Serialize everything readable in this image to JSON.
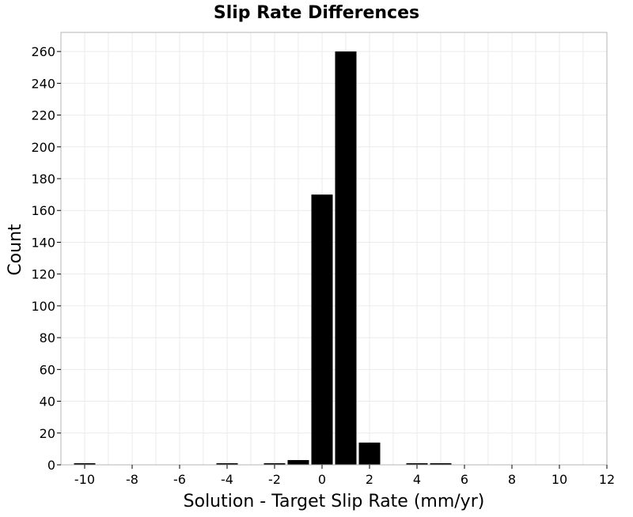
{
  "chart_data": {
    "type": "bar",
    "title": "Slip Rate Differences",
    "xlabel": "Solution - Target Slip Rate (mm/yr)",
    "ylabel": "Count",
    "xlim": [
      -11,
      12
    ],
    "ylim": [
      0,
      272
    ],
    "bin_width": 1,
    "x": [
      -10,
      -9,
      -8,
      -7,
      -6,
      -5,
      -4,
      -3,
      -2,
      -1,
      0,
      1,
      2,
      3,
      4,
      5,
      6,
      7,
      8,
      9,
      10
    ],
    "values": [
      1,
      0,
      0,
      0,
      0,
      0,
      1,
      0,
      1,
      3,
      170,
      260,
      14,
      0,
      1,
      1,
      0,
      0,
      0,
      0,
      0
    ],
    "x_ticks": [
      -10,
      -8,
      -6,
      -4,
      -2,
      0,
      2,
      4,
      6,
      8,
      10,
      12
    ],
    "y_ticks": [
      0,
      20,
      40,
      60,
      80,
      100,
      120,
      140,
      160,
      180,
      200,
      220,
      240,
      260
    ],
    "grid": true,
    "legend": "none",
    "colors": {
      "bar": "#000000",
      "grid": "#ebebeb",
      "frame": "#b4b4b4"
    }
  }
}
